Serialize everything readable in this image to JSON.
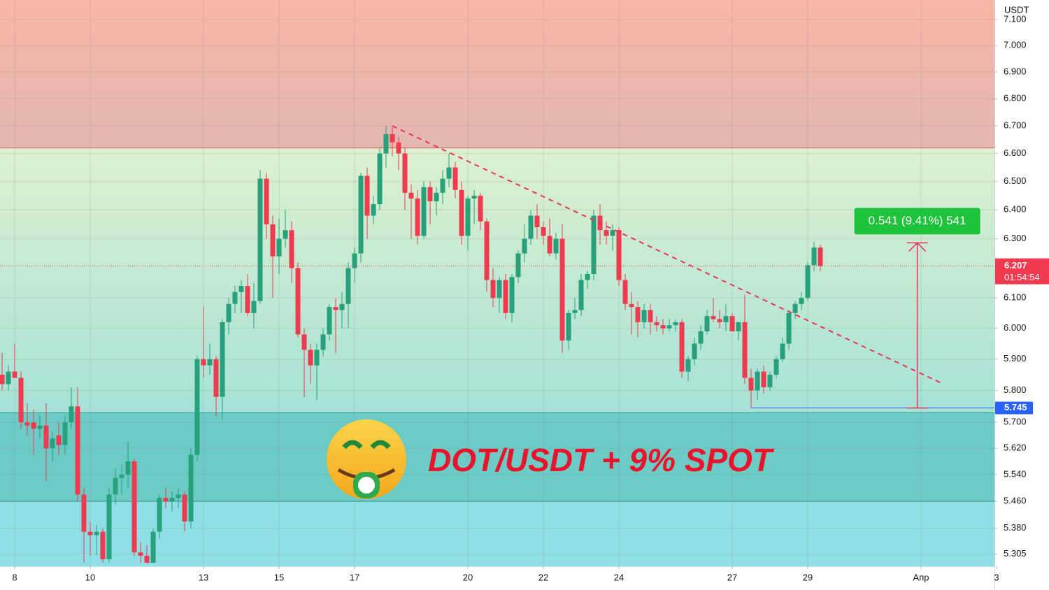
{
  "chart_data": {
    "type": "candlestick",
    "quote_currency": "USDT",
    "caption": "DOT/USDT + 9% SPOT",
    "up_color": "#26a17b",
    "down_color": "#ef3a4f",
    "log_scale": true,
    "grid": true,
    "xlim": [
      7.611,
      33.944
    ],
    "xticks": [
      8,
      10,
      13,
      15,
      17,
      20,
      22,
      24,
      27,
      29,
      {
        "value": 32,
        "label": "Апр"
      },
      {
        "value": 34,
        "label": "3"
      }
    ],
    "ylim": [
      5.27,
      7.176
    ],
    "yticks": [
      {
        "value": 7.1,
        "label": "7.100"
      },
      {
        "value": 7.0,
        "label": "7.000"
      },
      {
        "value": 6.9,
        "label": "6.900"
      },
      {
        "value": 6.8,
        "label": "6.800"
      },
      {
        "value": 6.7,
        "label": "6.700"
      },
      {
        "value": 6.6,
        "label": "6.600"
      },
      {
        "value": 6.5,
        "label": "6.500"
      },
      {
        "value": 6.4,
        "label": "6.400"
      },
      {
        "value": 6.3,
        "label": "6.300"
      },
      {
        "value": 6.1,
        "label": "6.100"
      },
      {
        "value": 6.0,
        "label": "6.000"
      },
      {
        "value": 5.9,
        "label": "5.900"
      },
      {
        "value": 5.8,
        "label": "5.800"
      },
      {
        "value": 5.7,
        "label": "5.700"
      },
      {
        "value": 5.62,
        "label": "5.620"
      },
      {
        "value": 5.54,
        "label": "5.540"
      },
      {
        "value": 5.46,
        "label": "5.460"
      },
      {
        "value": 5.38,
        "label": "5.380"
      },
      5.305
    ],
    "resistance": 6.62,
    "support_zone": [
      5.46,
      5.73
    ],
    "trendline": {
      "x": [
        18,
        32.6
      ],
      "y": [
        6.7,
        5.82
      ]
    },
    "measure": {
      "x": 31.9,
      "from": 5.745,
      "to": 6.286,
      "label": "0.541 (9.41%) 541"
    },
    "low_level": {
      "value": 5.745,
      "x_start": 27.5
    },
    "last_price": {
      "value": 6.207,
      "countdown": "01:54:54"
    },
    "x": [
      7.667,
      7.833,
      8,
      8.167,
      8.333,
      8.5,
      8.667,
      8.833,
      9,
      9.167,
      9.333,
      9.5,
      9.667,
      9.833,
      10,
      10.167,
      10.333,
      10.5,
      10.667,
      10.833,
      11,
      11.167,
      11.333,
      11.5,
      11.667,
      11.833,
      12,
      12.167,
      12.333,
      12.5,
      12.667,
      12.833,
      13,
      13.167,
      13.333,
      13.5,
      13.667,
      13.833,
      14,
      14.167,
      14.333,
      14.5,
      14.667,
      14.833,
      15,
      15.167,
      15.333,
      15.5,
      15.667,
      15.833,
      16,
      16.167,
      16.333,
      16.5,
      16.667,
      16.833,
      17,
      17.167,
      17.333,
      17.5,
      17.667,
      17.833,
      18,
      18.167,
      18.333,
      18.5,
      18.667,
      18.833,
      19,
      19.167,
      19.333,
      19.5,
      19.667,
      19.833,
      20,
      20.167,
      20.333,
      20.5,
      20.667,
      20.833,
      21,
      21.167,
      21.333,
      21.5,
      21.667,
      21.833,
      22,
      22.167,
      22.333,
      22.5,
      22.667,
      22.833,
      23,
      23.167,
      23.333,
      23.5,
      23.667,
      23.833,
      24,
      24.167,
      24.333,
      24.5,
      24.667,
      24.833,
      25,
      25.167,
      25.333,
      25.5,
      25.667,
      25.833,
      26,
      26.167,
      26.333,
      26.5,
      26.667,
      26.833,
      27,
      27.167,
      27.333,
      27.5,
      27.667,
      27.833,
      28,
      28.167,
      28.333,
      28.5,
      28.667,
      28.833,
      29,
      29.167,
      29.333
    ],
    "open": [
      5.85,
      5.82,
      5.86,
      5.84,
      5.7,
      5.7,
      5.68,
      5.69,
      5.62,
      5.66,
      5.63,
      5.7,
      5.75,
      5.48,
      5.37,
      5.36,
      5.37,
      5.29,
      5.48,
      5.53,
      5.54,
      5.58,
      5.31,
      5.3,
      5.28,
      5.37,
      5.47,
      5.46,
      5.47,
      5.48,
      5.4,
      5.6,
      5.9,
      5.88,
      5.9,
      5.78,
      6.02,
      6.08,
      6.12,
      6.14,
      6.05,
      6.09,
      6.51,
      6.35,
      6.24,
      6.3,
      6.33,
      6.2,
      5.98,
      5.93,
      5.88,
      5.93,
      5.98,
      6.07,
      6.06,
      6.08,
      6.2,
      6.25,
      6.52,
      6.38,
      6.42,
      6.6,
      6.67,
      6.64,
      6.6,
      6.46,
      6.44,
      6.31,
      6.48,
      6.43,
      6.46,
      6.51,
      6.55,
      6.47,
      6.31,
      6.44,
      6.45,
      6.36,
      6.16,
      6.1,
      6.16,
      6.05,
      6.17,
      6.25,
      6.3,
      6.38,
      6.34,
      6.31,
      6.25,
      6.3,
      5.96,
      6.05,
      6.06,
      6.16,
      6.18,
      6.38,
      6.33,
      6.31,
      6.33,
      6.16,
      6.08,
      6.07,
      6.02,
      6.06,
      6.02,
      6.01,
      6.0,
      6.01,
      6.02,
      5.86,
      5.9,
      5.95,
      5.99,
      6.04,
      6.03,
      6.02,
      6.04,
      5.99,
      6.02,
      5.84,
      5.8,
      5.86,
      5.81,
      5.85,
      5.9,
      5.95,
      6.05,
      6.08,
      6.1,
      6.21,
      6.27
    ],
    "high": [
      5.92,
      5.88,
      5.95,
      5.86,
      5.76,
      5.74,
      5.72,
      5.76,
      5.67,
      5.7,
      5.72,
      5.81,
      5.81,
      5.5,
      5.4,
      5.39,
      5.38,
      5.5,
      5.56,
      5.57,
      5.64,
      5.59,
      5.34,
      5.33,
      5.38,
      5.48,
      5.5,
      5.49,
      5.5,
      5.49,
      5.62,
      5.91,
      6.07,
      5.95,
      5.91,
      6.03,
      6.1,
      6.14,
      6.16,
      6.18,
      6.15,
      6.54,
      6.53,
      6.38,
      6.37,
      6.4,
      6.36,
      6.22,
      6.0,
      5.95,
      5.95,
      6.0,
      6.08,
      6.1,
      6.12,
      6.22,
      6.27,
      6.53,
      6.55,
      6.45,
      6.62,
      6.7,
      6.7,
      6.66,
      6.62,
      6.49,
      6.47,
      6.5,
      6.5,
      6.48,
      6.54,
      6.6,
      6.57,
      6.5,
      6.45,
      6.47,
      6.46,
      6.37,
      6.2,
      6.17,
      6.18,
      6.18,
      6.26,
      6.35,
      6.4,
      6.42,
      6.36,
      6.37,
      6.32,
      6.35,
      6.06,
      6.1,
      6.18,
      6.19,
      6.4,
      6.42,
      6.36,
      6.35,
      6.34,
      6.18,
      6.12,
      6.09,
      6.08,
      6.08,
      6.04,
      6.03,
      6.03,
      6.03,
      6.03,
      5.91,
      5.97,
      6.01,
      6.06,
      6.1,
      6.06,
      6.08,
      6.05,
      6.02,
      6.11,
      5.87,
      5.87,
      5.88,
      5.86,
      5.91,
      5.97,
      6.06,
      6.09,
      6.12,
      6.22,
      6.29,
      6.28
    ],
    "low": [
      5.8,
      5.8,
      5.84,
      5.68,
      5.66,
      5.6,
      5.65,
      5.52,
      5.58,
      5.6,
      5.6,
      5.68,
      5.46,
      5.28,
      5.3,
      5.3,
      5.28,
      5.28,
      5.45,
      5.48,
      5.5,
      5.3,
      5.28,
      5.28,
      5.28,
      5.35,
      5.44,
      5.43,
      5.44,
      5.37,
      5.38,
      5.58,
      5.84,
      5.85,
      5.72,
      5.71,
      5.98,
      6.05,
      6.05,
      6.04,
      6.0,
      6.08,
      6.3,
      6.1,
      6.18,
      6.27,
      6.15,
      5.97,
      5.78,
      5.82,
      5.77,
      5.91,
      5.96,
      5.92,
      6.0,
      6.0,
      6.15,
      6.22,
      6.3,
      6.35,
      6.4,
      6.55,
      6.59,
      6.54,
      6.4,
      6.3,
      6.28,
      6.3,
      6.35,
      6.38,
      6.42,
      6.48,
      6.44,
      6.28,
      6.26,
      6.35,
      6.33,
      6.12,
      6.07,
      6.05,
      6.03,
      6.02,
      6.15,
      6.22,
      6.28,
      6.3,
      6.28,
      6.24,
      6.23,
      5.92,
      5.93,
      6.03,
      6.04,
      6.13,
      6.16,
      6.28,
      6.28,
      6.26,
      6.14,
      6.06,
      5.98,
      5.97,
      6.0,
      5.98,
      5.99,
      5.98,
      5.99,
      5.99,
      5.84,
      5.83,
      5.88,
      5.93,
      5.98,
      6.02,
      6.0,
      5.99,
      5.99,
      5.96,
      5.82,
      5.745,
      5.77,
      5.79,
      5.8,
      5.84,
      5.89,
      5.93,
      6.03,
      6.06,
      6.09,
      6.19,
      6.19
    ],
    "close": [
      5.82,
      5.86,
      5.84,
      5.7,
      5.69,
      5.68,
      5.69,
      5.62,
      5.65,
      5.63,
      5.7,
      5.75,
      5.48,
      5.37,
      5.36,
      5.37,
      5.29,
      5.48,
      5.53,
      5.54,
      5.58,
      5.31,
      5.3,
      5.28,
      5.37,
      5.47,
      5.46,
      5.47,
      5.48,
      5.4,
      5.6,
      5.9,
      5.88,
      5.9,
      5.78,
      6.02,
      6.08,
      6.12,
      6.14,
      6.05,
      6.09,
      6.51,
      6.35,
      6.24,
      6.3,
      6.33,
      6.2,
      5.98,
      5.93,
      5.88,
      5.93,
      5.98,
      6.07,
      6.06,
      6.08,
      6.2,
      6.25,
      6.52,
      6.38,
      6.42,
      6.6,
      6.67,
      6.64,
      6.6,
      6.46,
      6.44,
      6.31,
      6.48,
      6.43,
      6.46,
      6.51,
      6.55,
      6.47,
      6.31,
      6.44,
      6.45,
      6.36,
      6.16,
      6.1,
      6.16,
      6.05,
      6.17,
      6.25,
      6.3,
      6.38,
      6.34,
      6.31,
      6.25,
      6.3,
      5.96,
      6.05,
      6.06,
      6.16,
      6.18,
      6.38,
      6.33,
      6.31,
      6.33,
      6.16,
      6.08,
      6.07,
      6.02,
      6.06,
      6.02,
      6.01,
      6.0,
      6.01,
      6.02,
      5.86,
      5.9,
      5.95,
      5.99,
      6.04,
      6.03,
      6.02,
      6.04,
      5.99,
      6.02,
      5.84,
      5.8,
      5.86,
      5.81,
      5.85,
      5.9,
      5.95,
      6.05,
      6.08,
      6.1,
      6.21,
      6.27,
      6.207
    ]
  }
}
